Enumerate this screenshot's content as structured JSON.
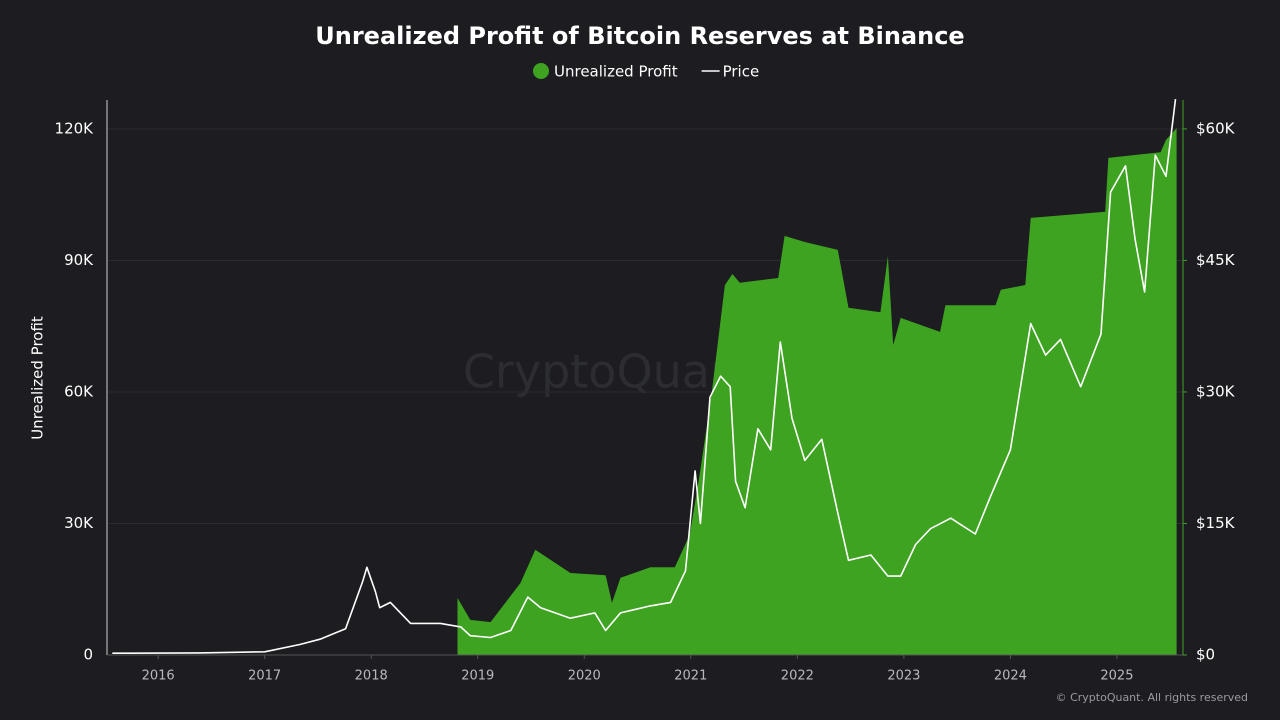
{
  "chart_data": {
    "type": "area-line",
    "title": "Unrealized Profit of Bitcoin Reserves at Binance",
    "y_label": "Unrealized Profit",
    "watermark": "CryptoQuant",
    "footer": "© CryptoQuant. All rights reserved",
    "xlim": [
      2015.52,
      2025.62
    ],
    "xticks": [
      2016,
      2017,
      2018,
      2019,
      2020,
      2021,
      2022,
      2023,
      2024,
      2025
    ],
    "ylim": [
      0,
      126600
    ],
    "yticks": [
      0,
      {
        "value": 30000,
        "label": "30K"
      },
      {
        "value": 60000,
        "label": "60K"
      },
      {
        "value": 90000,
        "label": "90K"
      },
      {
        "value": 120000,
        "label": "120K"
      }
    ],
    "y2lim": [
      0,
      63300
    ],
    "y2ticks": [
      {
        "value": 0,
        "label": "$0"
      },
      {
        "value": 15000,
        "label": "$15K"
      },
      {
        "value": 30000,
        "label": "$30K"
      },
      {
        "value": 45000,
        "label": "$45K"
      },
      {
        "value": 60000,
        "label": "$60K"
      }
    ],
    "grid": true,
    "series": [
      {
        "name": "Unrealized Profit",
        "color": "#3ea321",
        "kind": "area",
        "x": [
          2018.81,
          2018.93,
          2019.12,
          2019.4,
          2019.54,
          2019.87,
          2020.2,
          2020.26,
          2020.34,
          2020.62,
          2020.85,
          2020.99,
          2021.09,
          2021.2,
          2021.32,
          2021.39,
          2021.46,
          2021.82,
          2021.88,
          2022.07,
          2022.38,
          2022.48,
          2022.78,
          2022.85,
          2022.9,
          2022.97,
          2023.34,
          2023.39,
          2023.86,
          2023.91,
          2024.14,
          2024.19,
          2024.89,
          2024.92,
          2025.41,
          2025.46,
          2025.56
        ],
        "values": [
          13000,
          8000,
          7500,
          16400,
          24000,
          18700,
          18200,
          11900,
          17600,
          20000,
          20000,
          27400,
          42200,
          60500,
          84400,
          86900,
          84900,
          86000,
          95600,
          94200,
          92400,
          79200,
          78200,
          91000,
          70700,
          76900,
          73700,
          79800,
          79800,
          83300,
          84400,
          99700,
          101100,
          113400,
          114700,
          117500,
          120200
        ]
      },
      {
        "name": "Price",
        "color": "#ffffff",
        "kind": "line",
        "axis": "y2",
        "x": [
          2015.57,
          2016.39,
          2017.0,
          2017.33,
          2017.52,
          2017.76,
          2017.92,
          2017.96,
          2018.04,
          2018.08,
          2018.18,
          2018.37,
          2018.65,
          2018.84,
          2018.93,
          2019.12,
          2019.31,
          2019.47,
          2019.59,
          2019.87,
          2020.1,
          2020.2,
          2020.34,
          2020.62,
          2020.81,
          2020.95,
          2021.04,
          2021.09,
          2021.18,
          2021.28,
          2021.37,
          2021.42,
          2021.51,
          2021.63,
          2021.75,
          2021.84,
          2021.95,
          2022.07,
          2022.23,
          2022.38,
          2022.48,
          2022.69,
          2022.85,
          2022.97,
          2023.11,
          2023.25,
          2023.44,
          2023.67,
          2023.81,
          2024.0,
          2024.19,
          2024.33,
          2024.47,
          2024.66,
          2024.85,
          2024.94,
          2025.08,
          2025.17,
          2025.26,
          2025.36,
          2025.46,
          2025.55
        ],
        "values": [
          200,
          240,
          360,
          1200,
          1800,
          3000,
          8400,
          10000,
          7200,
          5400,
          6000,
          3600,
          3600,
          3200,
          2200,
          2000,
          2800,
          6600,
          5400,
          4200,
          4800,
          2800,
          4800,
          5600,
          6000,
          9600,
          21000,
          15000,
          29400,
          31800,
          30600,
          19800,
          16800,
          25800,
          23400,
          35700,
          27000,
          22200,
          24600,
          16200,
          10800,
          11400,
          9000,
          9000,
          12600,
          14400,
          15600,
          13800,
          18000,
          23400,
          37800,
          34200,
          36000,
          30600,
          36600,
          52800,
          55800,
          47400,
          41400,
          57000,
          54600,
          63400
        ]
      }
    ]
  }
}
